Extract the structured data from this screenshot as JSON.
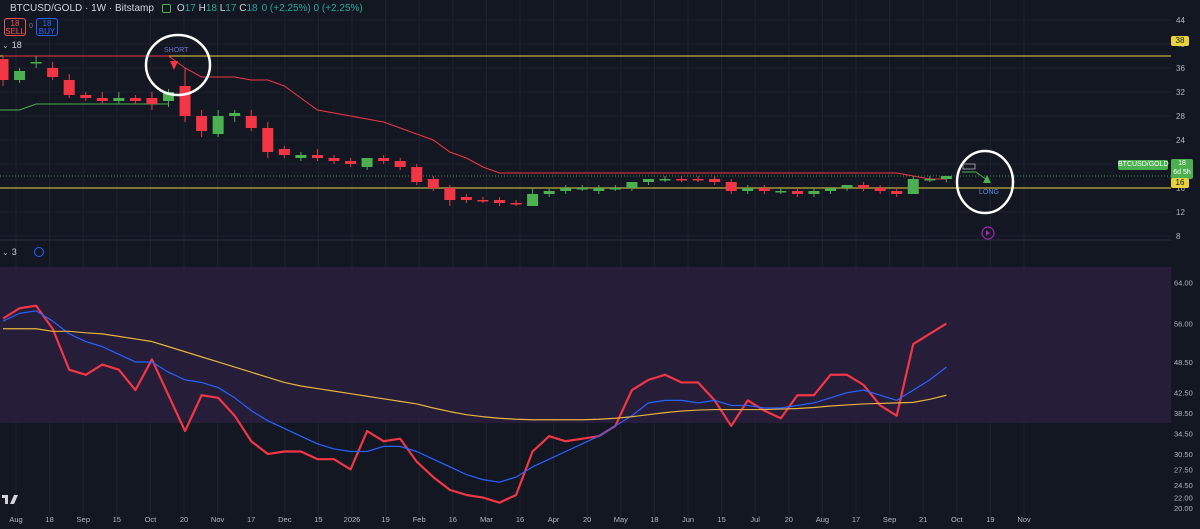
{
  "header": {
    "symbol": "BTCUSD/GOLD · 1W · Bitstamp",
    "ohlc": {
      "o_label": "O",
      "o": "17",
      "h_label": "H",
      "h": "18",
      "l_label": "L",
      "l": "17",
      "c_label": "C",
      "c": "18"
    },
    "change": "0 (+2.25%)   0 (+2.25%)",
    "sell_price": "18",
    "sell_label": "SELL",
    "buy_price": "18",
    "buy_label": "BUY",
    "spread": "0"
  },
  "indicator_rows": {
    "main_label": "18",
    "sub_label": "3"
  },
  "price_axis": {
    "ticks": [
      "44",
      "40",
      "36",
      "32",
      "28",
      "24",
      "20",
      "16",
      "12",
      "8"
    ]
  },
  "osc_axis": {
    "ticks": [
      "64.00",
      "56.00",
      "48.50",
      "42.50",
      "38.50",
      "34.50",
      "30.50",
      "27.50",
      "24.50",
      "22.00",
      "20.00"
    ]
  },
  "time_axis": {
    "ticks": [
      "Aug",
      "18",
      "Sep",
      "15",
      "Oct",
      "20",
      "Nov",
      "17",
      "Dec",
      "15",
      "2026",
      "19",
      "Feb",
      "16",
      "Mar",
      "16",
      "Apr",
      "20",
      "May",
      "18",
      "Jun",
      "15",
      "Jul",
      "20",
      "Aug",
      "17",
      "Sep",
      "21",
      "Oct",
      "19",
      "Nov"
    ]
  },
  "badges": {
    "level_high": "38",
    "symbol_tag": "BTCUSD/GOLD",
    "price_tag": "18",
    "countdown": "6d 5h",
    "level_low": "16"
  },
  "annotations": {
    "short": "SHORT",
    "long": "LONG"
  },
  "colors": {
    "bg": "#131722",
    "up": "#4caf50",
    "down": "#f23645",
    "trail": "#f23645",
    "support": "#4caf50",
    "level": "#e6d23c",
    "rsi": "#f23645",
    "ma": "#2962ff",
    "ma2": "#e6b340",
    "osc_bg": "#2a1f3d"
  },
  "chart_data": [
    {
      "type": "candlestick",
      "title": "",
      "candles": [
        [
          37.5,
          38,
          33,
          34,
          "down"
        ],
        [
          34,
          36,
          33.5,
          35.5,
          "up"
        ],
        [
          37,
          38,
          36,
          37,
          "up"
        ],
        [
          36,
          37,
          34,
          34.5,
          "down"
        ],
        [
          34,
          35,
          31,
          31.5,
          "down"
        ],
        [
          31.5,
          32,
          30.5,
          31,
          "down"
        ],
        [
          31,
          32,
          30,
          30.5,
          "down"
        ],
        [
          30.5,
          32,
          30,
          31,
          "up"
        ],
        [
          31,
          31.5,
          30,
          30.5,
          "down"
        ],
        [
          30,
          32,
          29,
          31,
          "down"
        ],
        [
          30.5,
          32.5,
          29.5,
          32,
          "up"
        ],
        [
          33,
          36,
          27,
          28,
          "down"
        ],
        [
          28,
          29,
          24.5,
          25.5,
          "down"
        ],
        [
          25,
          29,
          24.5,
          28,
          "up"
        ],
        [
          28,
          29,
          27,
          28.5,
          "up"
        ],
        [
          28,
          29,
          25.5,
          26,
          "down"
        ],
        [
          26,
          27,
          21,
          22,
          "down"
        ],
        [
          22.5,
          23,
          21,
          21.5,
          "down"
        ],
        [
          21.5,
          22,
          20.5,
          21,
          "up"
        ],
        [
          21.5,
          22.5,
          20.5,
          21,
          "down"
        ],
        [
          21,
          21.5,
          20,
          20.5,
          "down"
        ],
        [
          20.5,
          21,
          19.5,
          20,
          "down"
        ],
        [
          19.5,
          21,
          19,
          21,
          "up"
        ],
        [
          21,
          21.5,
          20,
          20.5,
          "down"
        ],
        [
          20.5,
          21,
          19,
          19.5,
          "down"
        ],
        [
          19.5,
          20,
          16.5,
          17,
          "down"
        ],
        [
          17.5,
          18,
          15.5,
          16,
          "down"
        ],
        [
          16,
          16.5,
          13,
          14,
          "down"
        ],
        [
          14.5,
          15,
          13.5,
          14,
          "down"
        ],
        [
          14,
          14.5,
          13.5,
          14,
          "down"
        ],
        [
          14,
          14.5,
          13,
          13.5,
          "down"
        ],
        [
          13.5,
          14,
          13,
          13.5,
          "down"
        ],
        [
          13,
          16,
          13,
          15,
          "up"
        ],
        [
          15,
          16,
          14.5,
          15.5,
          "up"
        ],
        [
          15.5,
          16.5,
          15,
          16,
          "up"
        ],
        [
          16,
          16.5,
          15.5,
          16,
          "up"
        ],
        [
          15.5,
          16.5,
          15,
          16,
          "up"
        ],
        [
          16,
          16.5,
          15.5,
          16,
          "up"
        ],
        [
          16,
          17,
          15.5,
          17,
          "up"
        ],
        [
          17,
          17.5,
          16.5,
          17.5,
          "up"
        ],
        [
          17.5,
          18,
          17,
          17.5,
          "up"
        ],
        [
          17.5,
          18,
          17,
          17.5,
          "down"
        ],
        [
          17.5,
          18,
          17,
          17.5,
          "down"
        ],
        [
          17.5,
          18,
          16.5,
          17,
          "down"
        ],
        [
          17,
          17.5,
          15,
          15.5,
          "down"
        ],
        [
          15.5,
          16.5,
          15,
          16,
          "up"
        ],
        [
          16,
          16.5,
          15,
          15.5,
          "down"
        ],
        [
          15.5,
          16,
          15,
          15.5,
          "up"
        ],
        [
          15.5,
          16,
          14.5,
          15,
          "down"
        ],
        [
          15,
          16,
          14.5,
          15.5,
          "up"
        ],
        [
          15.5,
          16,
          15,
          16,
          "up"
        ],
        [
          16,
          16.5,
          15.5,
          16.5,
          "up"
        ],
        [
          16.5,
          17,
          15.5,
          16,
          "down"
        ],
        [
          16,
          16.5,
          15,
          15.5,
          "down"
        ],
        [
          15.5,
          16,
          14.5,
          15,
          "down"
        ],
        [
          15,
          18,
          15,
          17.5,
          "up"
        ],
        [
          17.5,
          18,
          17,
          17.5,
          "up"
        ],
        [
          17.5,
          18,
          17,
          18,
          "up"
        ]
      ],
      "trail_stop": [
        38,
        38,
        38,
        38,
        38,
        38,
        38,
        38,
        38,
        38,
        38,
        36,
        34.5,
        34.5,
        34.5,
        34,
        34,
        33,
        31,
        29,
        28.5,
        28,
        27.5,
        27,
        26,
        25,
        24,
        22,
        21,
        19.5,
        18.5,
        18.5,
        18.5,
        18.5,
        18.5,
        18.5,
        18.5,
        18.5,
        18.5,
        18.5,
        18.5,
        18.5,
        18.5,
        18.5,
        18.5,
        18.5,
        18.5,
        18.5,
        18.5,
        18.5,
        18.5,
        18.5,
        18.5,
        18.5,
        18.5,
        18,
        17.5,
        17.5
      ],
      "support": [
        29,
        29,
        30,
        30,
        30,
        30,
        30,
        30,
        30,
        30,
        30
      ],
      "level_high": 38,
      "level_low": 16,
      "ylim": [
        6,
        46
      ]
    },
    {
      "type": "line",
      "title": "",
      "ylim": [
        18,
        70
      ],
      "series": [
        {
          "values": [
            57,
            59,
            59.5,
            55,
            47,
            46,
            48,
            47,
            43,
            49,
            42,
            35,
            42,
            41.5,
            38,
            33,
            30.5,
            31,
            31,
            29.5,
            29.5,
            27.5,
            35,
            33,
            33.5,
            29,
            26,
            23.5,
            22.5,
            22,
            21,
            22.5,
            31,
            34,
            33,
            33.5,
            34,
            36,
            43,
            45,
            46,
            44.5,
            44.5,
            41,
            36,
            41,
            39,
            37.5,
            42,
            42,
            46,
            46,
            44,
            40,
            38,
            52,
            54,
            56
          ]
        },
        {
          "values": [
            56.5,
            58,
            58.5,
            56.5,
            54,
            52.5,
            51.5,
            50,
            48.5,
            48.5,
            46.5,
            45,
            44.5,
            43.5,
            41.5,
            39,
            37,
            35.5,
            34,
            32.5,
            31.5,
            31,
            31,
            32,
            32,
            31,
            29.5,
            28,
            26.5,
            25.5,
            25,
            26,
            28,
            29.5,
            31,
            32.5,
            34,
            36,
            38,
            40.5,
            41,
            41,
            40.5,
            41,
            40,
            40,
            39.5,
            39.5,
            40,
            40.5,
            41.5,
            42.5,
            43,
            42,
            41,
            43,
            45,
            47.5
          ]
        },
        {
          "values": [
            55,
            55,
            55,
            54.5,
            54.5,
            54.2,
            54,
            53.5,
            53,
            52.5,
            51.5,
            50.5,
            49.5,
            48.5,
            47.5,
            46.5,
            45.5,
            44.5,
            43.8,
            43.3,
            42.8,
            42.3,
            41.8,
            41.3,
            40.8,
            40.3,
            39.5,
            38.8,
            38.2,
            37.8,
            37.5,
            37.3,
            37.2,
            37.2,
            37.2,
            37.2,
            37.3,
            37.5,
            37.8,
            38.2,
            38.6,
            38.9,
            39.1,
            39.2,
            39.2,
            39.2,
            39.2,
            39.3,
            39.4,
            39.6,
            39.9,
            40.1,
            40.3,
            40.4,
            40.5,
            40.6,
            41.2,
            42
          ]
        }
      ]
    }
  ]
}
